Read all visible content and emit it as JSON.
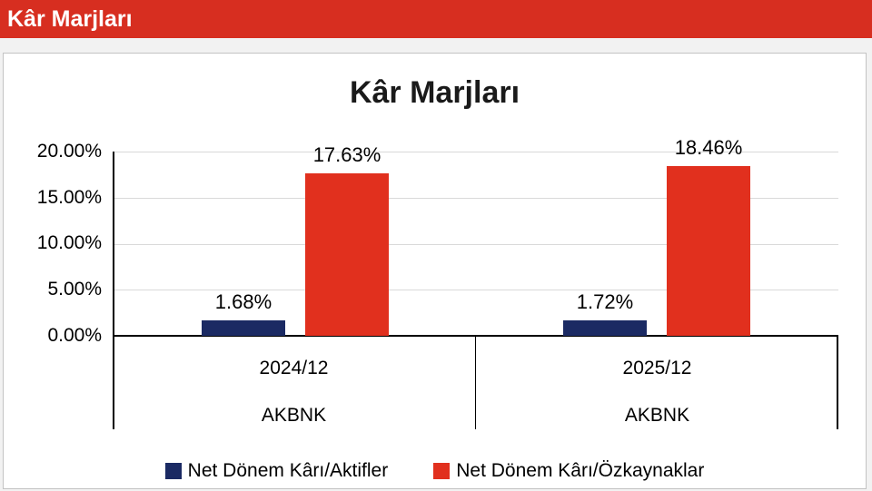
{
  "header": {
    "title": "Kâr Marjları"
  },
  "colors": {
    "header_bg": "#d72e20",
    "series_navy": "#1b2a63",
    "series_red": "#e1301e",
    "gridline": "#d9d9d9",
    "axis": "#000000"
  },
  "chart_data": {
    "type": "bar",
    "title": "Kâr Marjları",
    "categories": [
      {
        "period": "2024/12",
        "ticker": "AKBNK"
      },
      {
        "period": "2025/12",
        "ticker": "AKBNK"
      }
    ],
    "series": [
      {
        "name": "Net Dönem Kârı/Aktifler",
        "color": "#1b2a63",
        "values": [
          1.68,
          1.72
        ],
        "labels": [
          "1.68%",
          "1.72%"
        ]
      },
      {
        "name": "Net Dönem Kârı/Özkaynaklar",
        "color": "#e1301e",
        "values": [
          17.63,
          18.46
        ],
        "labels": [
          "17.63%",
          "18.46%"
        ]
      }
    ],
    "y_axis": {
      "min": 0,
      "max": 20,
      "tick_step": 5,
      "ticks": [
        "0.00%",
        "5.00%",
        "10.00%",
        "15.00%",
        "20.00%"
      ]
    },
    "grid": true,
    "legend_position": "bottom"
  }
}
